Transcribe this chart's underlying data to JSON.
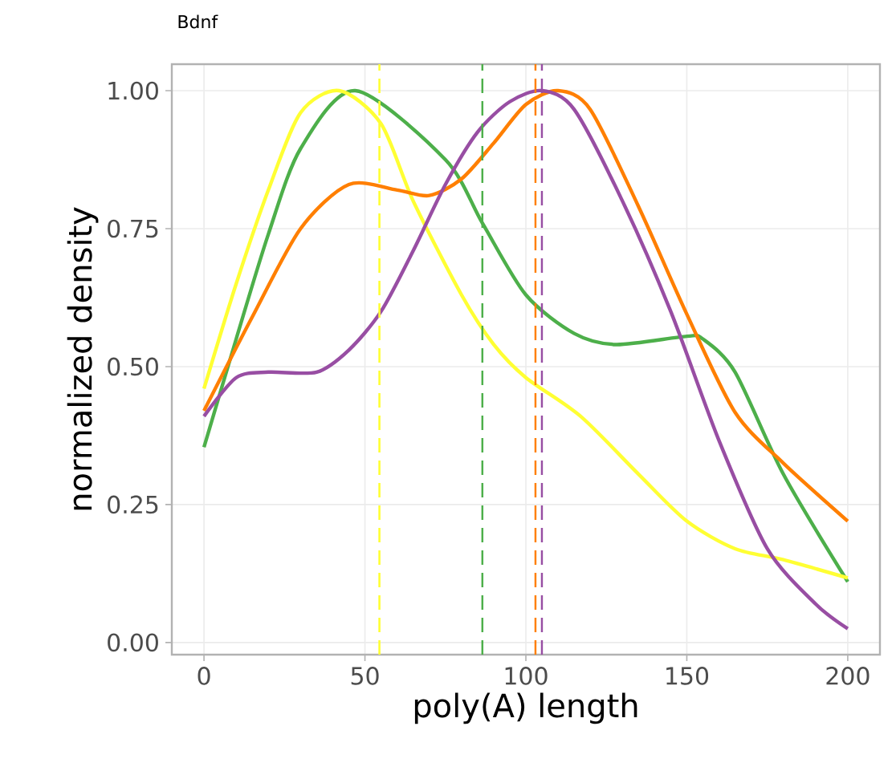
{
  "chart_data": {
    "type": "line",
    "title": "Bdnf",
    "xlabel": "poly(A) length",
    "ylabel": "normalized density",
    "xlim": [
      -10,
      210
    ],
    "ylim": [
      -0.022,
      1.048
    ],
    "xticks": [
      0,
      50,
      100,
      150,
      200
    ],
    "yticks": [
      {
        "value": 0,
        "label": "0.00"
      },
      {
        "value": 0.25,
        "label": "0.25"
      },
      {
        "value": 0.5,
        "label": "0.50"
      },
      {
        "value": 0.75,
        "label": "0.75"
      },
      {
        "value": 1,
        "label": "1.00"
      }
    ],
    "grid": true,
    "line_style": "solid",
    "marker": "none",
    "series": [
      {
        "color": "#4daf4a",
        "x": [
          0,
          10,
          20,
          30,
          47,
          75,
          86.5,
          100,
          115,
          128,
          150,
          155,
          165,
          180,
          200
        ],
        "values": [
          0.354,
          0.55,
          0.74,
          0.895,
          1.0,
          0.875,
          0.76,
          0.63,
          0.56,
          0.54,
          0.555,
          0.55,
          0.49,
          0.305,
          0.11
        ]
      },
      {
        "color": "#ffff33",
        "x": [
          0,
          10,
          20,
          30,
          42,
          55,
          65,
          80,
          90,
          100,
          117,
          135,
          150,
          165,
          180,
          200
        ],
        "values": [
          0.46,
          0.65,
          0.82,
          0.96,
          1.0,
          0.94,
          0.8,
          0.63,
          0.54,
          0.48,
          0.41,
          0.305,
          0.22,
          0.17,
          0.15,
          0.117
        ]
      },
      {
        "color": "#ff7f00",
        "x": [
          0,
          15,
          30,
          45,
          60,
          70,
          80,
          90,
          100,
          110,
          120,
          135,
          150,
          165,
          180,
          200
        ],
        "values": [
          0.42,
          0.59,
          0.75,
          0.83,
          0.82,
          0.81,
          0.84,
          0.905,
          0.975,
          1.0,
          0.966,
          0.79,
          0.595,
          0.417,
          0.325,
          0.22
        ]
      },
      {
        "color": "#984ea3",
        "x": [
          0,
          10,
          20,
          35,
          45,
          55,
          65,
          75,
          85,
          95,
          105,
          115,
          130,
          145,
          160,
          175,
          190,
          200
        ],
        "values": [
          0.41,
          0.48,
          0.49,
          0.49,
          0.53,
          0.6,
          0.71,
          0.83,
          0.925,
          0.98,
          1.0,
          0.966,
          0.8,
          0.6,
          0.366,
          0.17,
          0.07,
          0.025
        ]
      }
    ],
    "ref_lines": [
      {
        "axis": "x",
        "value": 54.5,
        "color": "#ffff33",
        "line_style": "dashed"
      },
      {
        "axis": "x",
        "value": 86.5,
        "color": "#4daf4a",
        "line_style": "dashed"
      },
      {
        "axis": "x",
        "value": 103,
        "color": "#ff7f00",
        "line_style": "dashed"
      },
      {
        "axis": "x",
        "value": 105,
        "color": "#984ea3",
        "line_style": "dashed"
      }
    ]
  }
}
